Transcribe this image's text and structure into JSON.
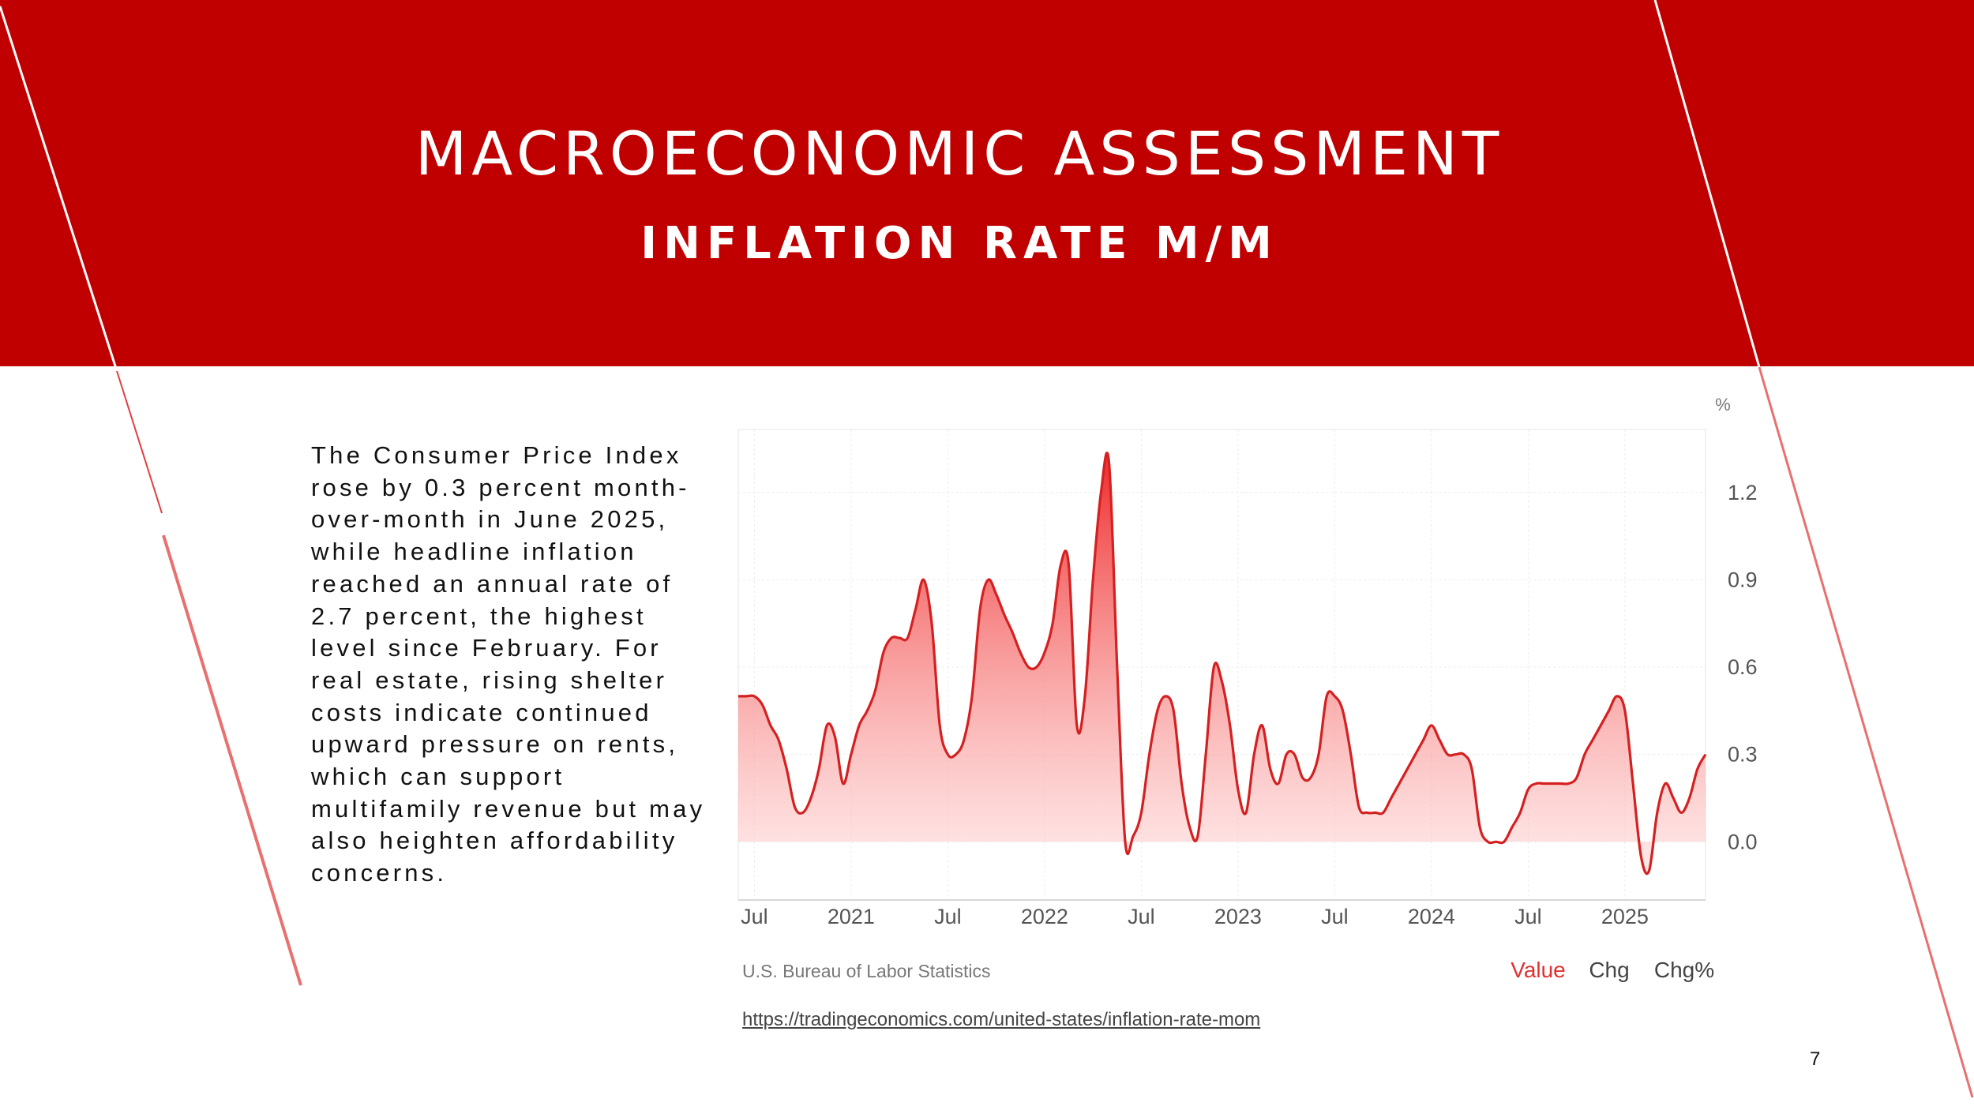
{
  "slide": {
    "title": "MACROECONOMIC ASSESSMENT",
    "subtitle": "INFLATION RATE M/M",
    "body": "The Consumer Price Index rose by 0.3 percent month-over-month in June 2025, while headline inflation reached an annual rate of 2.7 percent, the highest level since February. For real estate, rising shelter costs indicate continued upward pressure on rents, which can support multifamily revenue but may also heighten affordability concerns.",
    "link": "https://tradingeconomics.com/united-states/inflation-rate-mom",
    "page_number": "7"
  },
  "colors": {
    "banner": "#c00000",
    "line": "#d42020",
    "legend_active": "#e03030"
  },
  "chart_data": {
    "type": "area",
    "title": "",
    "unit_label": "%",
    "ylim": [
      -0.2,
      1.4
    ],
    "yticks": [
      0.0,
      0.3,
      0.6,
      0.9,
      1.2
    ],
    "ytick_labels": [
      "0.0",
      "0.3",
      "0.6",
      "0.9",
      "1.2"
    ],
    "xlim": [
      0,
      60
    ],
    "xticks": [
      1,
      7,
      13,
      19,
      25,
      31,
      37,
      43,
      49,
      55
    ],
    "xtick_labels": [
      "Jul",
      "2021",
      "Jul",
      "2022",
      "Jul",
      "2023",
      "Jul",
      "2024",
      "Jul",
      "2025"
    ],
    "grid": true,
    "source": "U.S. Bureau of Labor Statistics",
    "legend": [
      "Value",
      "Chg",
      "Chg%"
    ],
    "series": [
      {
        "name": "Value",
        "x": [
          0,
          0.5,
          1,
          1.5,
          2,
          2.5,
          3,
          3.5,
          4,
          4.5,
          5,
          5.5,
          6,
          6.5,
          7,
          7.5,
          8,
          8.5,
          9,
          9.5,
          10,
          10.5,
          11,
          11.5,
          12,
          12.5,
          13,
          13.5,
          14,
          14.5,
          15,
          15.5,
          16,
          16.5,
          17,
          17.5,
          18,
          18.5,
          19,
          19.5,
          20,
          20.5,
          21,
          21.5,
          22,
          22.5,
          23,
          23.5,
          24,
          24.5,
          25,
          25.5,
          26,
          26.5,
          27,
          27.5,
          28,
          28.5,
          29,
          29.5,
          30,
          30.5,
          31,
          31.5,
          32,
          32.5,
          33,
          33.5,
          34,
          34.5,
          35,
          35.5,
          36,
          36.5,
          37,
          37.5,
          38,
          38.5,
          39,
          39.5,
          40,
          40.5,
          41,
          41.5,
          42,
          42.5,
          43,
          43.5,
          44,
          44.5,
          45,
          45.5,
          46,
          46.5,
          47,
          47.5,
          48,
          48.5,
          49,
          49.5,
          50,
          50.5,
          51,
          51.5,
          52,
          52.5,
          53,
          53.5,
          54,
          54.5,
          55,
          55.5,
          56,
          56.5,
          57,
          57.5,
          58,
          58.5,
          59,
          59.5,
          60
        ],
        "values": [
          0.5,
          0.5,
          0.5,
          0.47,
          0.4,
          0.35,
          0.25,
          0.12,
          0.1,
          0.15,
          0.25,
          0.4,
          0.36,
          0.2,
          0.3,
          0.4,
          0.45,
          0.52,
          0.65,
          0.7,
          0.7,
          0.7,
          0.8,
          0.9,
          0.75,
          0.4,
          0.3,
          0.3,
          0.35,
          0.5,
          0.8,
          0.9,
          0.85,
          0.78,
          0.72,
          0.65,
          0.6,
          0.6,
          0.65,
          0.75,
          0.95,
          0.95,
          0.4,
          0.5,
          0.9,
          1.2,
          1.3,
          0.6,
          0.0,
          0.02,
          0.1,
          0.3,
          0.45,
          0.5,
          0.45,
          0.2,
          0.05,
          0.02,
          0.3,
          0.6,
          0.55,
          0.4,
          0.18,
          0.1,
          0.3,
          0.4,
          0.25,
          0.2,
          0.3,
          0.3,
          0.22,
          0.22,
          0.3,
          0.5,
          0.5,
          0.45,
          0.3,
          0.12,
          0.1,
          0.1,
          0.1,
          0.15,
          0.2,
          0.25,
          0.3,
          0.35,
          0.4,
          0.35,
          0.3,
          0.3,
          0.3,
          0.25,
          0.05,
          0.0,
          0.0,
          0.0,
          0.05,
          0.1,
          0.18,
          0.2,
          0.2,
          0.2,
          0.2,
          0.2,
          0.22,
          0.3,
          0.35,
          0.4,
          0.45,
          0.5,
          0.45,
          0.2,
          -0.05,
          -0.1,
          0.1,
          0.2,
          0.15,
          0.1,
          0.15,
          0.25,
          0.3
        ]
      }
    ]
  }
}
